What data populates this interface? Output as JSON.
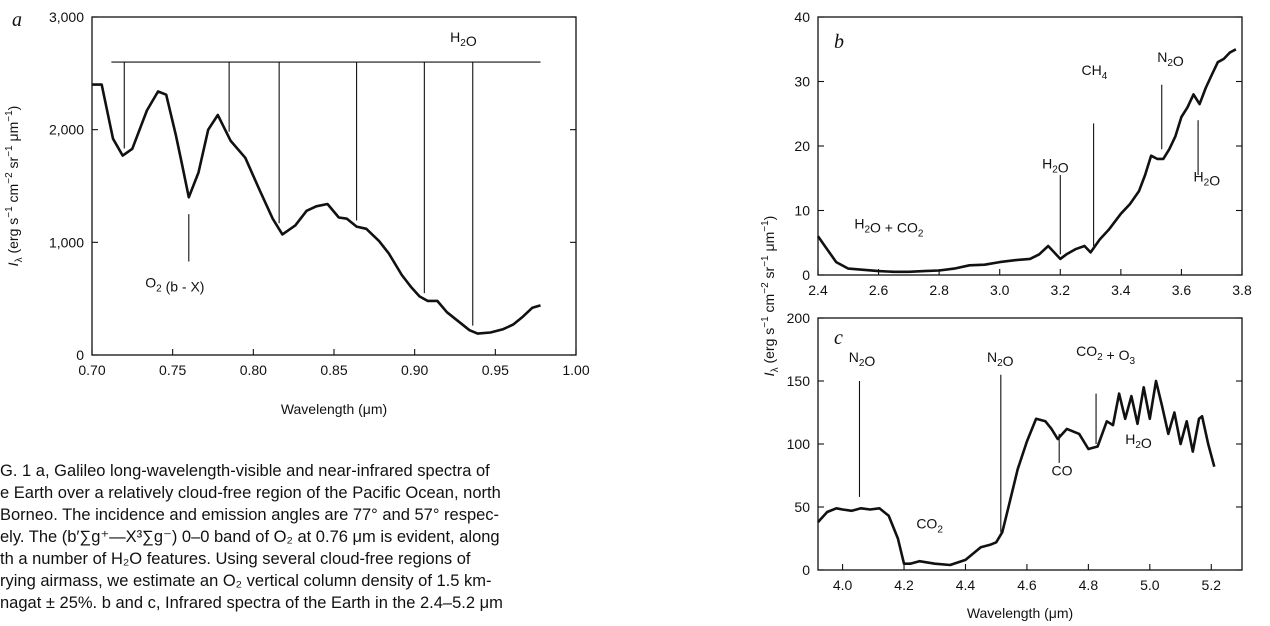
{
  "caption": [
    "G. 1 a, Galileo long-wavelength-visible and near-infrared spectra of",
    "e Earth over a relatively cloud-free region of the Pacific Ocean, north",
    "Borneo. The incidence and emission angles are 77° and 57° respec-",
    "ely. The (b′∑g⁺—X³∑g⁻) 0–0 band of O₂ at 0.76 μm is evident, along",
    "th a number of H₂O features. Using several cloud-free regions of",
    "rying airmass, we estimate an O₂ vertical column density of 1.5 km-",
    "nagat ± 25%. b and c, Infrared spectra of the Earth in the 2.4–5.2 μm"
  ],
  "chart_data": [
    {
      "panel": "a",
      "type": "line",
      "xlabel": "Wavelength (μm)",
      "ylabel": "I_λ (erg s⁻¹ cm⁻² sr⁻¹ μm⁻¹)",
      "xlim": [
        0.7,
        1.0
      ],
      "ylim": [
        0,
        3000
      ],
      "xticks": [
        "0.70",
        "0.75",
        "0.80",
        "0.85",
        "0.90",
        "0.95",
        "1.00"
      ],
      "yticks": [
        "0",
        "1,000",
        "2,000",
        "3,000"
      ],
      "x": [
        0.7,
        0.706,
        0.713,
        0.719,
        0.725,
        0.734,
        0.741,
        0.746,
        0.752,
        0.756,
        0.76,
        0.766,
        0.772,
        0.778,
        0.786,
        0.795,
        0.804,
        0.812,
        0.818,
        0.826,
        0.833,
        0.839,
        0.846,
        0.853,
        0.858,
        0.864,
        0.87,
        0.878,
        0.884,
        0.892,
        0.898,
        0.903,
        0.908,
        0.914,
        0.92,
        0.927,
        0.934,
        0.939,
        0.947,
        0.955,
        0.961,
        0.967,
        0.973,
        0.978
      ],
      "y": [
        2400,
        2400,
        1920,
        1770,
        1830,
        2170,
        2340,
        2310,
        1950,
        1680,
        1400,
        1620,
        2000,
        2130,
        1900,
        1750,
        1460,
        1210,
        1070,
        1150,
        1280,
        1320,
        1340,
        1220,
        1210,
        1140,
        1120,
        1010,
        900,
        710,
        600,
        520,
        480,
        480,
        380,
        300,
        220,
        190,
        200,
        230,
        270,
        340,
        420,
        440
      ],
      "annotations": [
        {
          "text": "H₂O",
          "x": 0.922,
          "y": 2780
        },
        {
          "text": "O₂ (b - X)",
          "x": 0.733,
          "y": 600
        }
      ],
      "h2o_markers": [
        0.72,
        0.785,
        0.816,
        0.864,
        0.906,
        0.936
      ],
      "o2_marker": 0.76
    },
    {
      "panel": "b",
      "type": "line",
      "xlim": [
        2.4,
        3.8
      ],
      "ylim": [
        0,
        40
      ],
      "xticks": [
        "2.4",
        "2.6",
        "2.8",
        "3.0",
        "3.2",
        "3.4",
        "3.6",
        "3.8"
      ],
      "yticks": [
        "0",
        "10",
        "20",
        "30",
        "40"
      ],
      "x": [
        2.4,
        2.43,
        2.46,
        2.5,
        2.55,
        2.6,
        2.65,
        2.7,
        2.75,
        2.8,
        2.85,
        2.9,
        2.95,
        3.0,
        3.05,
        3.1,
        3.13,
        3.16,
        3.18,
        3.2,
        3.22,
        3.25,
        3.28,
        3.3,
        3.33,
        3.36,
        3.4,
        3.43,
        3.46,
        3.48,
        3.5,
        3.52,
        3.54,
        3.56,
        3.58,
        3.6,
        3.62,
        3.64,
        3.66,
        3.68,
        3.7,
        3.72,
        3.74,
        3.76,
        3.78
      ],
      "y": [
        6,
        4,
        2,
        1,
        0.8,
        0.6,
        0.5,
        0.5,
        0.6,
        0.7,
        1,
        1.5,
        1.6,
        2,
        2.3,
        2.5,
        3.2,
        4.5,
        3.5,
        2.5,
        3.2,
        4,
        4.5,
        3.5,
        5.5,
        7,
        9.5,
        11,
        13,
        15.5,
        18.5,
        18,
        18,
        19.5,
        21.5,
        24.5,
        26,
        28,
        26.5,
        29,
        31,
        33,
        33.5,
        34.5,
        35
      ],
      "annotations": [
        {
          "text": "H₂O + CO₂",
          "x": 2.52,
          "y": 7.2
        },
        {
          "text": "H₂O",
          "x": 3.14,
          "y": 16.5
        },
        {
          "text": "CH₄",
          "x": 3.27,
          "y": 31
        },
        {
          "text": "N₂O",
          "x": 3.52,
          "y": 33
        },
        {
          "text": "H₂O",
          "x": 3.64,
          "y": 14.5
        }
      ]
    },
    {
      "panel": "c",
      "type": "line",
      "xlabel": "Wavelength (μm)",
      "xlim": [
        3.92,
        5.3
      ],
      "ylim": [
        0,
        200
      ],
      "xticks": [
        "4.0",
        "4.2",
        "4.4",
        "4.6",
        "4.8",
        "5.0",
        "5.2"
      ],
      "yticks": [
        "0",
        "50",
        "100",
        "150",
        "200"
      ],
      "x": [
        3.92,
        3.95,
        3.98,
        4.0,
        4.03,
        4.06,
        4.09,
        4.12,
        4.15,
        4.18,
        4.2,
        4.22,
        4.25,
        4.3,
        4.35,
        4.4,
        4.45,
        4.48,
        4.5,
        4.52,
        4.54,
        4.57,
        4.6,
        4.63,
        4.66,
        4.68,
        4.7,
        4.73,
        4.77,
        4.8,
        4.83,
        4.86,
        4.88,
        4.9,
        4.92,
        4.94,
        4.96,
        4.98,
        5.0,
        5.02,
        5.04,
        5.06,
        5.08,
        5.1,
        5.12,
        5.14,
        5.16,
        5.17,
        5.19,
        5.21
      ],
      "y": [
        38,
        46,
        49,
        48,
        47,
        49,
        48,
        49,
        43,
        25,
        5,
        5,
        7,
        5,
        4,
        8,
        18,
        20,
        22,
        30,
        50,
        80,
        102,
        120,
        118,
        112,
        104,
        112,
        108,
        96,
        98,
        118,
        115,
        140,
        120,
        138,
        116,
        145,
        120,
        150,
        130,
        108,
        125,
        100,
        118,
        94,
        120,
        122,
        100,
        82
      ],
      "annotations": [
        {
          "text": "N₂O",
          "x": 4.02,
          "y": 165
        },
        {
          "text": "CO₂",
          "x": 4.24,
          "y": 33
        },
        {
          "text": "N₂O",
          "x": 4.47,
          "y": 165
        },
        {
          "text": "CO₂ + O₃",
          "x": 4.76,
          "y": 170
        },
        {
          "text": "CO",
          "x": 4.68,
          "y": 75
        },
        {
          "text": "H₂O",
          "x": 4.92,
          "y": 100
        }
      ]
    }
  ],
  "panel_letters": {
    "a": "a",
    "b": "b",
    "c": "c"
  },
  "shared_ylabel_bc": "I_λ (erg s⁻¹ cm⁻² sr⁻¹ μm⁻¹)"
}
